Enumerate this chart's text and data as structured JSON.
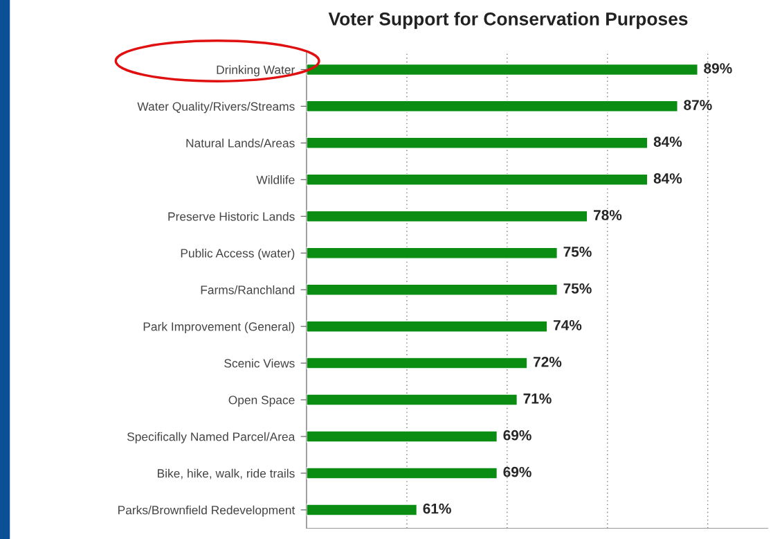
{
  "chart_data": {
    "type": "bar",
    "orientation": "horizontal",
    "title": "Voter Support for Conservation Purposes",
    "categories": [
      "Drinking Water",
      "Water Quality/Rivers/Streams",
      "Natural Lands/Areas",
      "Wildlife",
      "Preserve Historic Lands",
      "Public Access (water)",
      "Farms/Ranchland",
      "Park Improvement (General)",
      "Scenic Views",
      "Open Space",
      "Specifically Named Parcel/Area",
      "Bike, hike, walk, ride trails",
      "Parks/Brownfield Redevelopment"
    ],
    "values": [
      89,
      87,
      84,
      84,
      78,
      75,
      75,
      74,
      72,
      71,
      69,
      69,
      61
    ],
    "value_labels": [
      "89%",
      "87%",
      "84%",
      "84%",
      "78%",
      "75%",
      "75%",
      "74%",
      "72%",
      "71%",
      "69%",
      "69%",
      "61%"
    ],
    "color": "#0b8c12",
    "xlim": [
      50,
      96
    ],
    "xticks": [
      {
        "value": 60,
        "label": null
      },
      {
        "value": 70,
        "label": null
      },
      {
        "value": 80,
        "label": null
      },
      {
        "value": 90,
        "label": null
      }
    ],
    "tick_labels": "y",
    "grid": "x",
    "legend": false
  }
}
